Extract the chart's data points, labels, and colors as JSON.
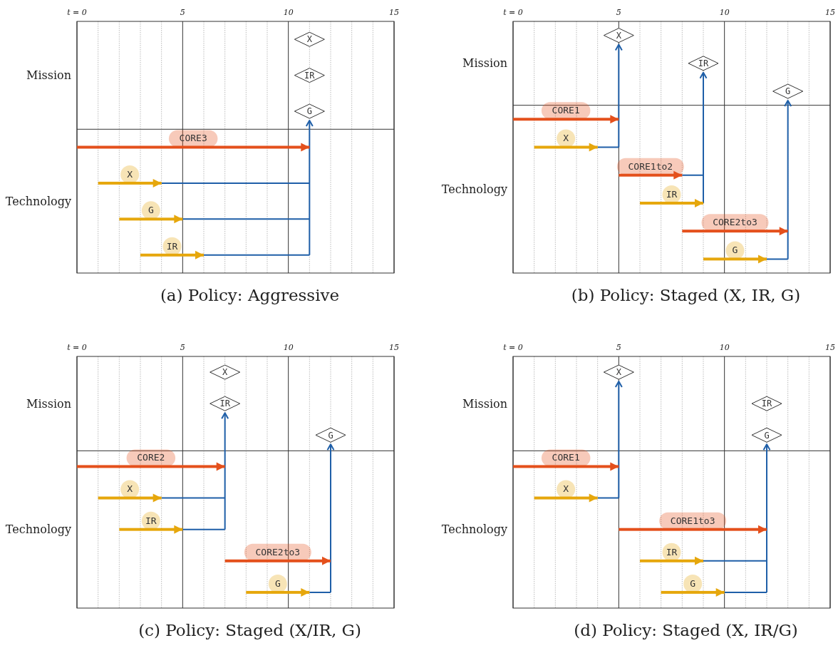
{
  "chart_data": [
    {
      "type": "bar",
      "orientation": "horizontal",
      "title": "(a) Policy: Aggressive",
      "categories": [
        null,
        null,
        null,
        null,
        null,
        null,
        null
      ],
      "series": [
        {
          "type": "bar",
          "base": [
            null,
            null,
            null,
            0,
            1,
            2,
            3
          ],
          "values": [
            null,
            null,
            null,
            11,
            3,
            3,
            3
          ],
          "value_labels": [
            null,
            null,
            null,
            "CORE3",
            "X",
            "G",
            "IR"
          ],
          "colors": [
            null,
            null,
            null,
            "#e4501c",
            "#e6a70c",
            "#e6a70c",
            "#e6a70c"
          ]
        },
        {
          "type": "scatter",
          "marker": "diamond",
          "color": "#333333",
          "values": [
            11,
            11,
            11,
            null,
            null,
            null,
            null
          ],
          "value_labels": [
            "X",
            "IR",
            "G",
            null,
            null,
            null,
            null
          ]
        }
      ],
      "xlim": [
        0,
        15
      ],
      "xticks": [
        {
          "value": 0,
          "label": "t = 0"
        },
        {
          "value": 1,
          "label": null
        },
        {
          "value": 2,
          "label": null
        },
        {
          "value": 3,
          "label": null
        },
        {
          "value": 4,
          "label": null
        },
        5,
        {
          "value": 6,
          "label": null
        },
        {
          "value": 7,
          "label": null
        },
        {
          "value": 8,
          "label": null
        },
        {
          "value": 9,
          "label": null
        },
        10,
        {
          "value": 11,
          "label": null
        },
        {
          "value": 12,
          "label": null
        },
        {
          "value": 13,
          "label": null
        },
        {
          "value": 14,
          "label": null
        },
        15
      ],
      "grid": "x",
      "annotations": [
        "Mission",
        "Technology"
      ]
    },
    {
      "type": "bar",
      "orientation": "horizontal",
      "title": "(b) Policy: Staged (X, IR, G)",
      "categories": [
        null,
        null,
        null,
        null,
        null,
        null,
        null,
        null,
        null
      ],
      "series": [
        {
          "type": "bar",
          "base": [
            null,
            null,
            null,
            0,
            1,
            5,
            6,
            8,
            9
          ],
          "values": [
            null,
            null,
            null,
            5,
            3,
            3,
            3,
            5,
            3
          ],
          "value_labels": [
            null,
            null,
            null,
            "CORE1",
            "X",
            "CORE1to2",
            "IR",
            "CORE2to3",
            "G"
          ],
          "colors": [
            null,
            null,
            null,
            "#e4501c",
            "#e6a70c",
            "#e4501c",
            "#e6a70c",
            "#e4501c",
            "#e6a70c"
          ]
        },
        {
          "type": "scatter",
          "marker": "diamond",
          "color": "#333333",
          "values": [
            5,
            9,
            13,
            null,
            null,
            null,
            null,
            null,
            null
          ],
          "value_labels": [
            "X",
            "IR",
            "G",
            null,
            null,
            null,
            null,
            null,
            null
          ]
        }
      ],
      "xlim": [
        0,
        15
      ],
      "xticks": [
        {
          "value": 0,
          "label": "t = 0"
        },
        {
          "value": 1,
          "label": null
        },
        {
          "value": 2,
          "label": null
        },
        {
          "value": 3,
          "label": null
        },
        {
          "value": 4,
          "label": null
        },
        5,
        {
          "value": 6,
          "label": null
        },
        {
          "value": 7,
          "label": null
        },
        {
          "value": 8,
          "label": null
        },
        {
          "value": 9,
          "label": null
        },
        10,
        {
          "value": 11,
          "label": null
        },
        {
          "value": 12,
          "label": null
        },
        {
          "value": 13,
          "label": null
        },
        {
          "value": 14,
          "label": null
        },
        15
      ],
      "grid": "x",
      "annotations": [
        "Mission",
        "Technology"
      ]
    },
    {
      "type": "bar",
      "orientation": "horizontal",
      "title": "(c) Policy: Staged (X/IR, G)",
      "categories": [
        null,
        null,
        null,
        null,
        null,
        null,
        null,
        null
      ],
      "series": [
        {
          "type": "bar",
          "base": [
            null,
            null,
            null,
            0,
            1,
            2,
            7,
            8
          ],
          "values": [
            null,
            null,
            null,
            7,
            3,
            3,
            5,
            3
          ],
          "value_labels": [
            null,
            null,
            null,
            "CORE2",
            "X",
            "IR",
            "CORE2to3",
            "G"
          ],
          "colors": [
            null,
            null,
            null,
            "#e4501c",
            "#e6a70c",
            "#e6a70c",
            "#e4501c",
            "#e6a70c"
          ]
        },
        {
          "type": "scatter",
          "marker": "diamond",
          "color": "#333333",
          "values": [
            7,
            7,
            12,
            null,
            null,
            null,
            null,
            null
          ],
          "value_labels": [
            "X",
            "IR",
            "G",
            null,
            null,
            null,
            null,
            null
          ]
        }
      ],
      "xlim": [
        0,
        15
      ],
      "xticks": [
        {
          "value": 0,
          "label": "t = 0"
        },
        {
          "value": 1,
          "label": null
        },
        {
          "value": 2,
          "label": null
        },
        {
          "value": 3,
          "label": null
        },
        {
          "value": 4,
          "label": null
        },
        5,
        {
          "value": 6,
          "label": null
        },
        {
          "value": 7,
          "label": null
        },
        {
          "value": 8,
          "label": null
        },
        {
          "value": 9,
          "label": null
        },
        10,
        {
          "value": 11,
          "label": null
        },
        {
          "value": 12,
          "label": null
        },
        {
          "value": 13,
          "label": null
        },
        {
          "value": 14,
          "label": null
        },
        15
      ],
      "grid": "x",
      "annotations": [
        "Mission",
        "Technology"
      ]
    },
    {
      "type": "bar",
      "orientation": "horizontal",
      "title": "(d) Policy: Staged (X, IR/G)",
      "categories": [
        null,
        null,
        null,
        null,
        null,
        null,
        null,
        null
      ],
      "series": [
        {
          "type": "bar",
          "base": [
            null,
            null,
            null,
            0,
            1,
            5,
            6,
            7
          ],
          "values": [
            null,
            null,
            null,
            5,
            3,
            7,
            3,
            3
          ],
          "value_labels": [
            null,
            null,
            null,
            "CORE1",
            "X",
            "CORE1to3",
            "IR",
            "G"
          ],
          "colors": [
            null,
            null,
            null,
            "#e4501c",
            "#e6a70c",
            "#e4501c",
            "#e6a70c",
            "#e6a70c"
          ]
        },
        {
          "type": "scatter",
          "marker": "diamond",
          "color": "#333333",
          "values": [
            5,
            12,
            12,
            null,
            null,
            null,
            null,
            null
          ],
          "value_labels": [
            "X",
            "IR",
            "G",
            null,
            null,
            null,
            null,
            null
          ]
        }
      ],
      "xlim": [
        0,
        15
      ],
      "xticks": [
        {
          "value": 0,
          "label": "t = 0"
        },
        {
          "value": 1,
          "label": null
        },
        {
          "value": 2,
          "label": null
        },
        {
          "value": 3,
          "label": null
        },
        {
          "value": 4,
          "label": null
        },
        5,
        {
          "value": 6,
          "label": null
        },
        {
          "value": 7,
          "label": null
        },
        {
          "value": 8,
          "label": null
        },
        {
          "value": 9,
          "label": null
        },
        10,
        {
          "value": 11,
          "label": null
        },
        {
          "value": 12,
          "label": null
        },
        {
          "value": 13,
          "label": null
        },
        {
          "value": 14,
          "label": null
        },
        15
      ],
      "grid": "x",
      "annotations": [
        "Mission",
        "Technology"
      ]
    }
  ]
}
